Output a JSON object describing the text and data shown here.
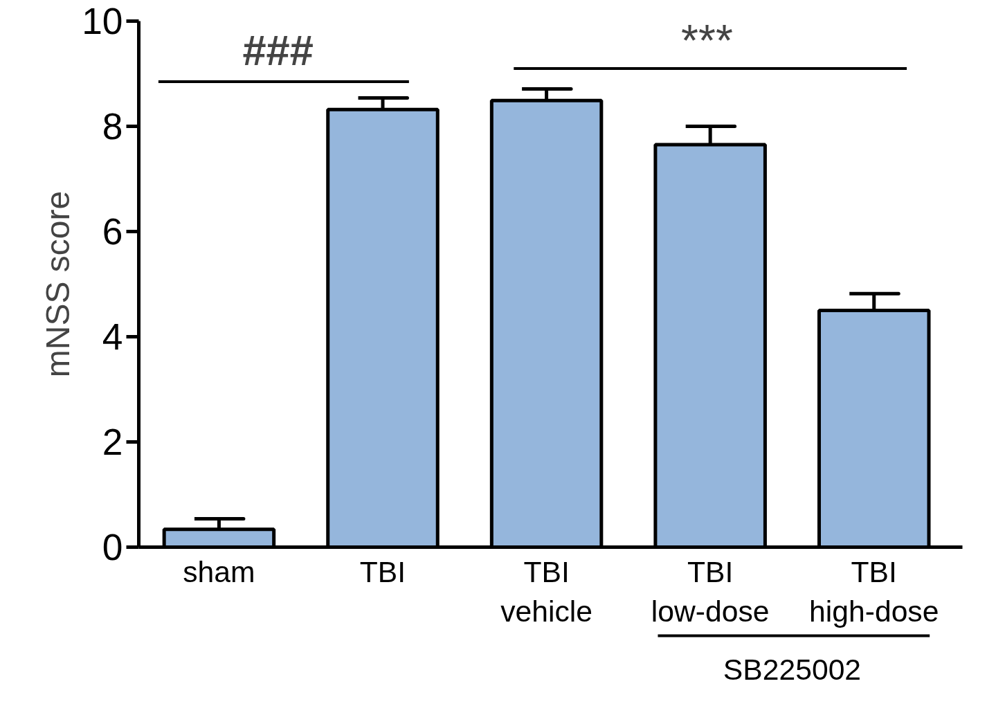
{
  "chart_data": {
    "type": "bar",
    "ylabel": "mNSS score",
    "categories": [
      "sham",
      "TBI",
      "TBI\nvehicle",
      "TBI\nlow-dose",
      "TBI\nhigh-dose"
    ],
    "values": [
      0.34,
      8.32,
      8.49,
      7.65,
      4.5
    ],
    "errors": [
      [
        0.34,
        0.54
      ],
      [
        8.32,
        8.54
      ],
      [
        8.49,
        8.71
      ],
      [
        7.65,
        8.0
      ],
      [
        4.5,
        4.82
      ]
    ],
    "color": "#95b6dc",
    "ylim": [
      0,
      10
    ],
    "yticks": [
      0,
      2,
      4,
      6,
      8,
      10
    ],
    "grid": false,
    "annotations": [
      "###",
      "***",
      "SB225002"
    ]
  }
}
